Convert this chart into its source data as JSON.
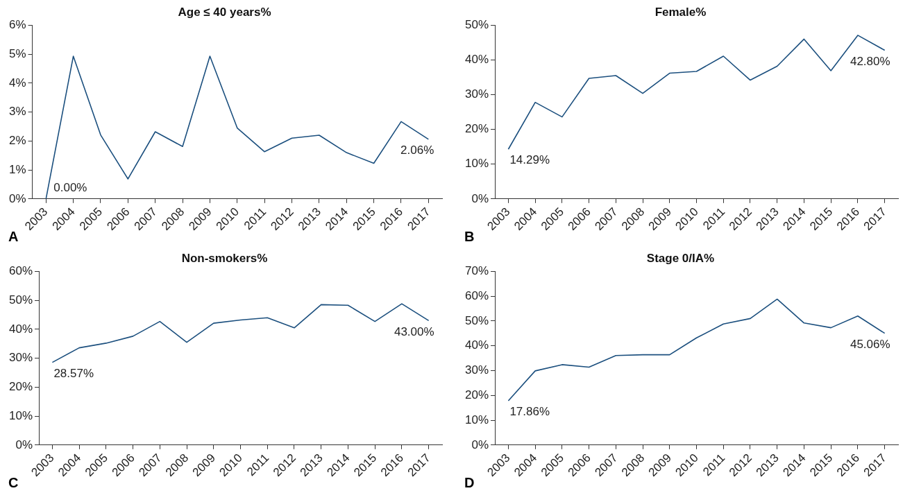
{
  "chart_data": [
    {
      "type": "line",
      "title": "Age ≤ 40 years%",
      "categories": [
        "2003",
        "2004",
        "2005",
        "2006",
        "2007",
        "2008",
        "2009",
        "2010",
        "2011",
        "2012",
        "2013",
        "2014",
        "2015",
        "2016",
        "2017"
      ],
      "series": [
        {
          "color": "#1b4f7e",
          "values": [
            0,
            4.93,
            2.21,
            0.69,
            2.32,
            1.81,
            4.93,
            2.45,
            1.63,
            2.1,
            2.2,
            1.6,
            1.23,
            2.67,
            2.06
          ],
          "value_labels": [
            "0.00%",
            null,
            null,
            null,
            null,
            null,
            null,
            null,
            null,
            null,
            null,
            null,
            null,
            null,
            "2.06%"
          ]
        }
      ],
      "ylim": [
        0,
        6
      ],
      "yticks": [
        {
          "value": 0,
          "label": "0%"
        },
        {
          "value": 1,
          "label": "1%"
        },
        {
          "value": 2,
          "label": "2%"
        },
        {
          "value": 3,
          "label": "3%"
        },
        {
          "value": 4,
          "label": "4%"
        },
        {
          "value": 5,
          "label": "5%"
        },
        {
          "value": 6,
          "label": "6%"
        }
      ],
      "grid": false,
      "legend": false,
      "annotations": [
        "A"
      ]
    },
    {
      "type": "line",
      "title": "Female%",
      "categories": [
        "2003",
        "2004",
        "2005",
        "2006",
        "2007",
        "2008",
        "2009",
        "2010",
        "2011",
        "2012",
        "2013",
        "2014",
        "2015",
        "2016",
        "2017"
      ],
      "series": [
        {
          "color": "#1b4f7e",
          "values": [
            14.29,
            27.8,
            23.6,
            34.7,
            35.5,
            30.4,
            36.2,
            36.7,
            41.1,
            34.2,
            38.2,
            46,
            36.9,
            47.1,
            42.8
          ],
          "value_labels": [
            "14.29%",
            null,
            null,
            null,
            null,
            null,
            null,
            null,
            null,
            null,
            null,
            null,
            null,
            null,
            "42.80%"
          ]
        }
      ],
      "ylim": [
        0,
        50
      ],
      "yticks": [
        {
          "value": 0,
          "label": "0%"
        },
        {
          "value": 10,
          "label": "10%"
        },
        {
          "value": 20,
          "label": "20%"
        },
        {
          "value": 30,
          "label": "30%"
        },
        {
          "value": 40,
          "label": "40%"
        },
        {
          "value": 50,
          "label": "50%"
        }
      ],
      "grid": false,
      "legend": false,
      "annotations": [
        "B"
      ]
    },
    {
      "type": "line",
      "title": "Non-smokers%",
      "categories": [
        "2003",
        "2004",
        "2005",
        "2006",
        "2007",
        "2008",
        "2009",
        "2010",
        "2011",
        "2012",
        "2013",
        "2014",
        "2015",
        "2016",
        "2017"
      ],
      "series": [
        {
          "color": "#1b4f7e",
          "values": [
            28.57,
            33.6,
            35.2,
            37.6,
            42.7,
            35.5,
            42.1,
            43.2,
            44,
            40.5,
            48.5,
            48.3,
            42.7,
            48.8,
            43.0
          ],
          "value_labels": [
            "28.57%",
            null,
            null,
            null,
            null,
            null,
            null,
            null,
            null,
            null,
            null,
            null,
            null,
            null,
            "43.00%"
          ]
        }
      ],
      "ylim": [
        0,
        60
      ],
      "yticks": [
        {
          "value": 0,
          "label": "0%"
        },
        {
          "value": 10,
          "label": "10%"
        },
        {
          "value": 20,
          "label": "20%"
        },
        {
          "value": 30,
          "label": "30%"
        },
        {
          "value": 40,
          "label": "40%"
        },
        {
          "value": 50,
          "label": "50%"
        },
        {
          "value": 60,
          "label": "60%"
        }
      ],
      "grid": false,
      "legend": false,
      "annotations": [
        "C"
      ]
    },
    {
      "type": "line",
      "title": "Stage 0/IA%",
      "categories": [
        "2003",
        "2004",
        "2005",
        "2006",
        "2007",
        "2008",
        "2009",
        "2010",
        "2011",
        "2012",
        "2013",
        "2014",
        "2015",
        "2016",
        "2017"
      ],
      "series": [
        {
          "color": "#1b4f7e",
          "values": [
            17.86,
            29.9,
            32.4,
            31.4,
            36.1,
            36.4,
            36.4,
            43.2,
            48.8,
            51.0,
            58.8,
            49.2,
            47.3,
            52,
            45.06
          ],
          "value_labels": [
            "17.86%",
            null,
            null,
            null,
            null,
            null,
            null,
            null,
            null,
            null,
            null,
            null,
            null,
            null,
            "45.06%"
          ]
        }
      ],
      "ylim": [
        0,
        70
      ],
      "yticks": [
        {
          "value": 0,
          "label": "0%"
        },
        {
          "value": 10,
          "label": "10%"
        },
        {
          "value": 20,
          "label": "20%"
        },
        {
          "value": 30,
          "label": "30%"
        },
        {
          "value": 40,
          "label": "40%"
        },
        {
          "value": 50,
          "label": "50%"
        },
        {
          "value": 60,
          "label": "60%"
        },
        {
          "value": 70,
          "label": "70%"
        }
      ],
      "grid": false,
      "legend": false,
      "annotations": [
        "D"
      ]
    }
  ]
}
